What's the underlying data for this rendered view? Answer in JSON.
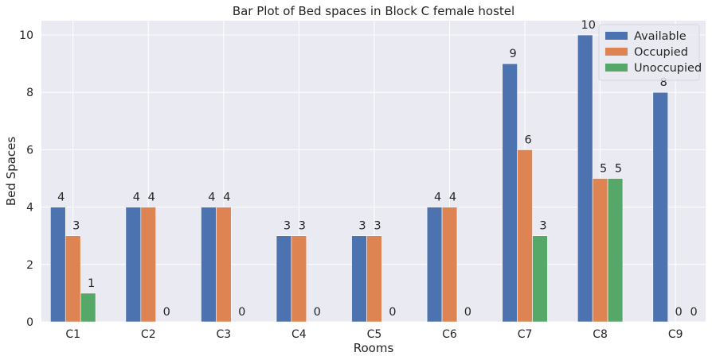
{
  "chart_data": {
    "type": "bar",
    "title": "Bar Plot of Bed spaces in Block C female hostel",
    "xlabel": "Rooms",
    "ylabel": "Bed Spaces",
    "categories": [
      "C1",
      "C2",
      "C3",
      "C4",
      "C5",
      "C6",
      "C7",
      "C8",
      "C9"
    ],
    "series": [
      {
        "name": "Available",
        "values": [
          4,
          4,
          4,
          3,
          3,
          4,
          9,
          10,
          8
        ],
        "color": "#4c72b0"
      },
      {
        "name": "Occupied",
        "values": [
          3,
          4,
          4,
          3,
          3,
          4,
          6,
          5,
          0
        ],
        "color": "#dd8452"
      },
      {
        "name": "Unoccupied",
        "values": [
          1,
          0,
          0,
          0,
          0,
          0,
          3,
          5,
          0
        ],
        "color": "#55a868"
      }
    ],
    "ylim": [
      0,
      10.5
    ],
    "yticks": [
      0,
      2,
      4,
      6,
      8,
      10
    ],
    "grid": true,
    "legend_position": "top-right",
    "background_color": "#eaeaf2",
    "grid_color": "#ffffff"
  }
}
